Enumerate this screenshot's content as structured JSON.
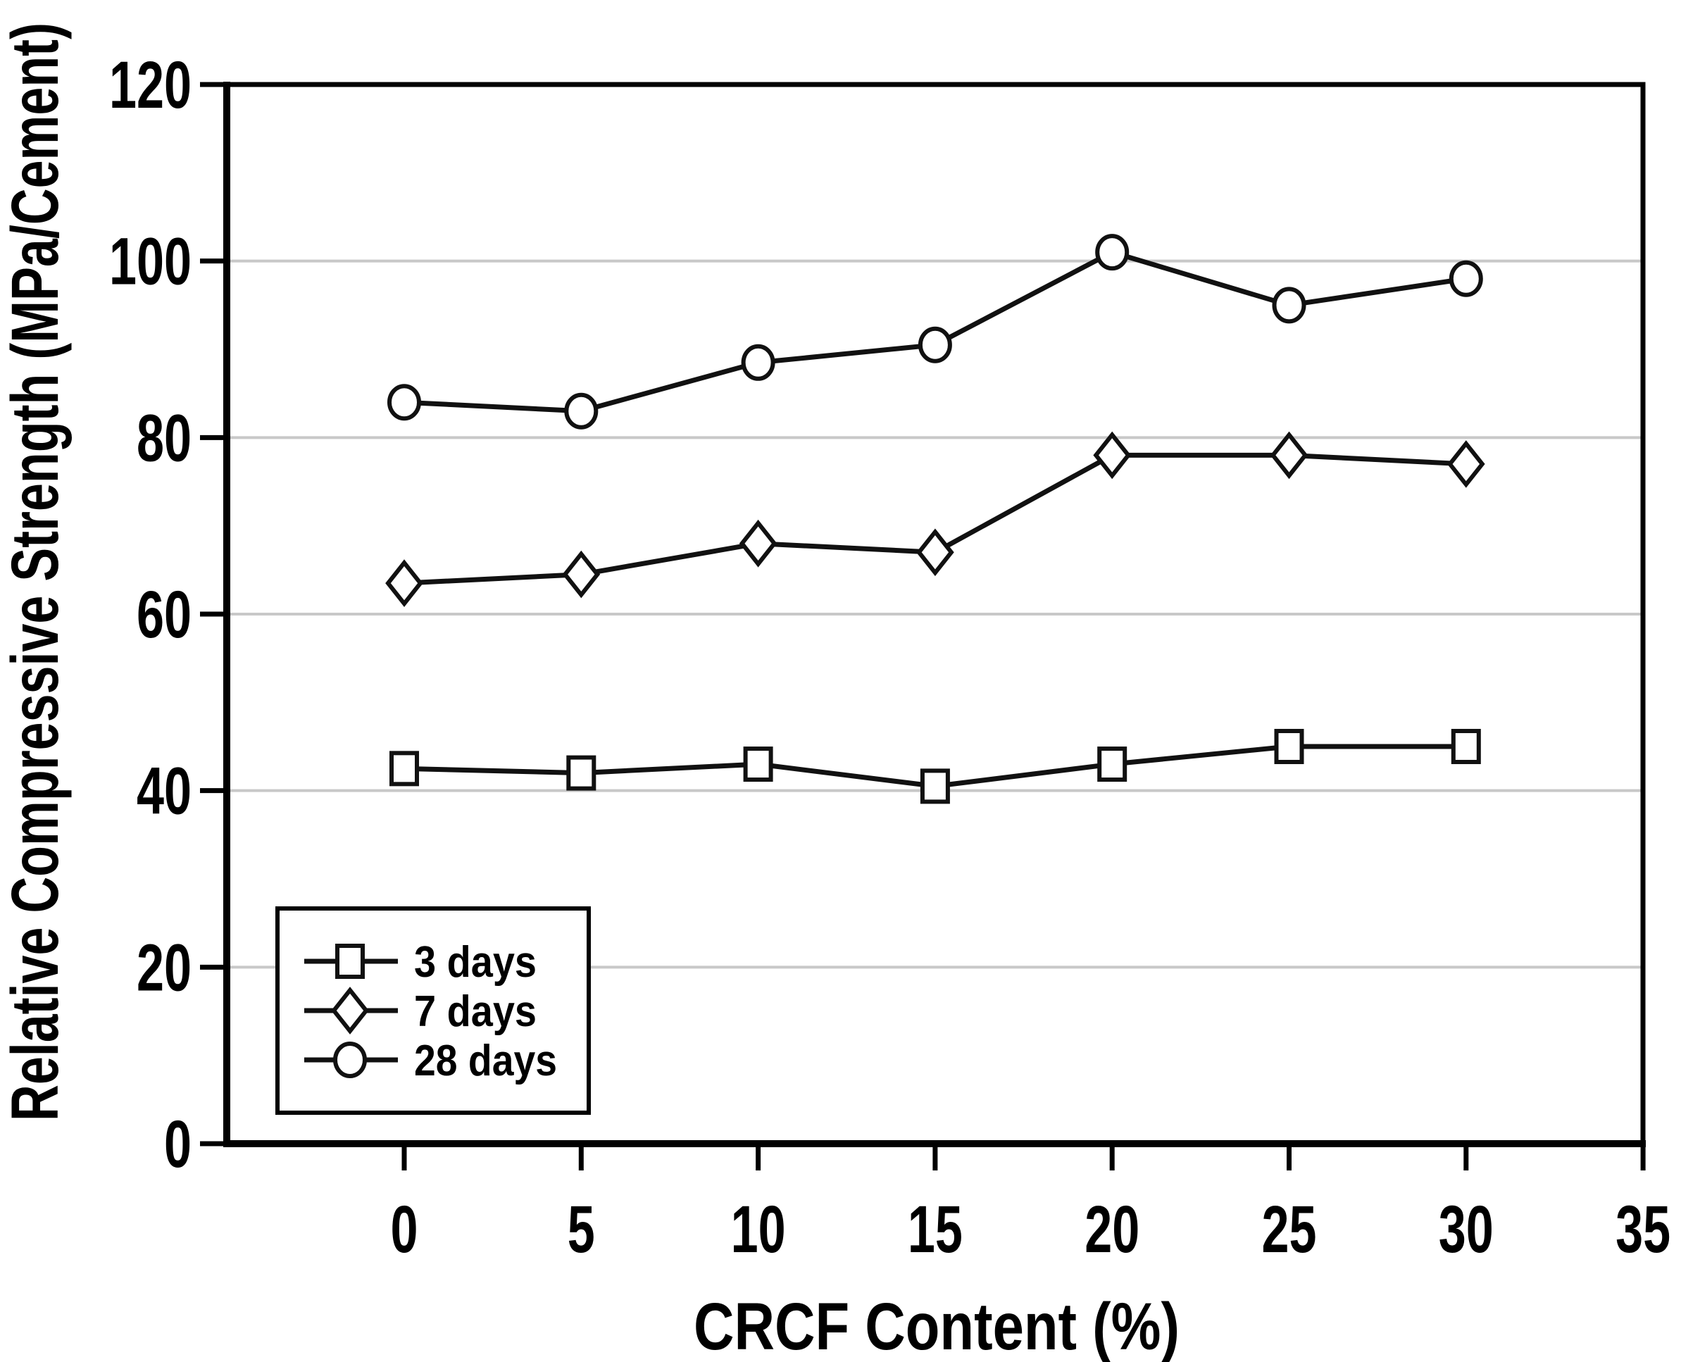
{
  "page": {
    "background": "#ffffff"
  },
  "chart_data": {
    "type": "line",
    "title": "",
    "xlabel": "CRCF Content (%)",
    "ylabel": "Relative Compressive Strength (MPa/Cement)",
    "x": [
      0,
      5,
      10,
      15,
      20,
      25,
      30
    ],
    "series": [
      {
        "name": "3 days",
        "marker": "square",
        "values": [
          42.5,
          42,
          43,
          40.5,
          43,
          45,
          45
        ]
      },
      {
        "name": "7 days",
        "marker": "diamond",
        "values": [
          63.5,
          64.5,
          68,
          67,
          78,
          78,
          77
        ]
      },
      {
        "name": "28 days",
        "marker": "circle",
        "values": [
          84,
          83,
          88.5,
          90.5,
          101,
          95,
          98
        ]
      }
    ],
    "xlim": [
      -5,
      35
    ],
    "ylim": [
      0,
      120
    ],
    "x_ticks": [
      0,
      5,
      10,
      15,
      20,
      25,
      30,
      35
    ],
    "y_ticks": [
      0,
      20,
      40,
      60,
      80,
      100,
      120
    ],
    "grid": true,
    "legend": {
      "position": "lower-left",
      "labels": [
        "3 days",
        "7 days",
        "28 days"
      ]
    },
    "colors": {
      "line": "#111111",
      "grid": "#c8c8c8",
      "axis": "#000000",
      "text": "#000000",
      "marker_fill": "#ffffff",
      "background": "#ffffff"
    }
  }
}
